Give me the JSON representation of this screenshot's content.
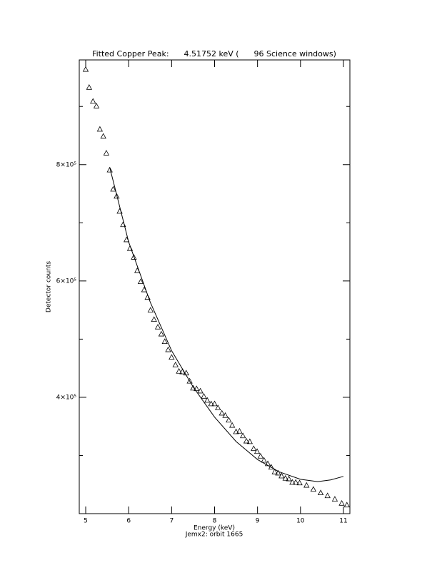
{
  "chart_data": {
    "type": "scatter",
    "title": "Fitted Copper Peak:      4.51752 keV (      96 Science windows)",
    "x_label": "Energy (keV)",
    "subtitle": "Jemx2: orbit 1665",
    "y_label": "Detector counts",
    "xlim": [
      4.85,
      11.15
    ],
    "xticks": [
      5,
      6,
      7,
      8,
      9,
      10,
      11
    ],
    "ylim": [
      200000,
      980000
    ],
    "yticks": [
      {
        "value": 400000,
        "label": "4×10⁵"
      },
      {
        "value": 600000,
        "label": "6×10⁵"
      },
      {
        "value": 800000,
        "label": "8×10⁵"
      }
    ],
    "yminorticks": [
      300000,
      500000,
      700000,
      900000
    ],
    "color": "#000000",
    "series": [
      {
        "style": "triangle",
        "x": [
          5.0,
          5.08,
          5.17,
          5.25,
          5.33,
          5.41,
          5.48,
          5.56,
          5.64,
          5.72,
          5.79,
          5.87,
          5.95,
          6.03,
          6.12,
          6.2,
          6.28,
          6.36,
          6.44,
          6.51,
          6.59,
          6.68,
          6.76,
          6.84,
          6.92,
          7.0,
          7.09,
          7.17,
          7.25,
          7.34,
          7.42,
          7.5,
          7.58,
          7.67,
          7.75,
          7.83,
          7.92,
          8.0,
          8.08,
          8.17,
          8.25,
          8.33,
          8.41,
          8.5,
          8.58,
          8.66,
          8.74,
          8.82,
          8.91,
          8.99,
          9.07,
          9.15,
          9.24,
          9.32,
          9.4,
          9.48,
          9.56,
          9.65,
          9.73,
          9.81,
          9.89,
          9.98,
          10.14,
          10.3,
          10.47,
          10.63,
          10.8,
          10.96,
          11.08
        ],
        "values": [
          964000,
          933000,
          909000,
          901000,
          861000,
          849000,
          820000,
          791000,
          758000,
          746000,
          720000,
          697000,
          671000,
          656000,
          641000,
          618000,
          599000,
          585000,
          572000,
          550000,
          534000,
          521000,
          509000,
          496000,
          482000,
          469000,
          456000,
          445000,
          444000,
          442000,
          428000,
          416000,
          415000,
          411000,
          402000,
          395000,
          389000,
          389000,
          382000,
          373000,
          369000,
          361000,
          352000,
          341000,
          342000,
          334000,
          325000,
          324000,
          312000,
          307000,
          299000,
          292000,
          286000,
          280000,
          272000,
          270000,
          265000,
          261000,
          260000,
          254000,
          254000,
          253000,
          249000,
          242000,
          236000,
          231000,
          225000,
          218000,
          215000
        ]
      },
      {
        "style": "line",
        "x": [
          5.56,
          6.0,
          6.5,
          7.0,
          7.5,
          8.0,
          8.5,
          9.0,
          9.5,
          10.0,
          10.4,
          10.7,
          11.0
        ],
        "values": [
          795000,
          667000,
          564000,
          480000,
          418000,
          366000,
          324000,
          293000,
          272000,
          259000,
          255000,
          258000,
          264000
        ]
      }
    ]
  }
}
